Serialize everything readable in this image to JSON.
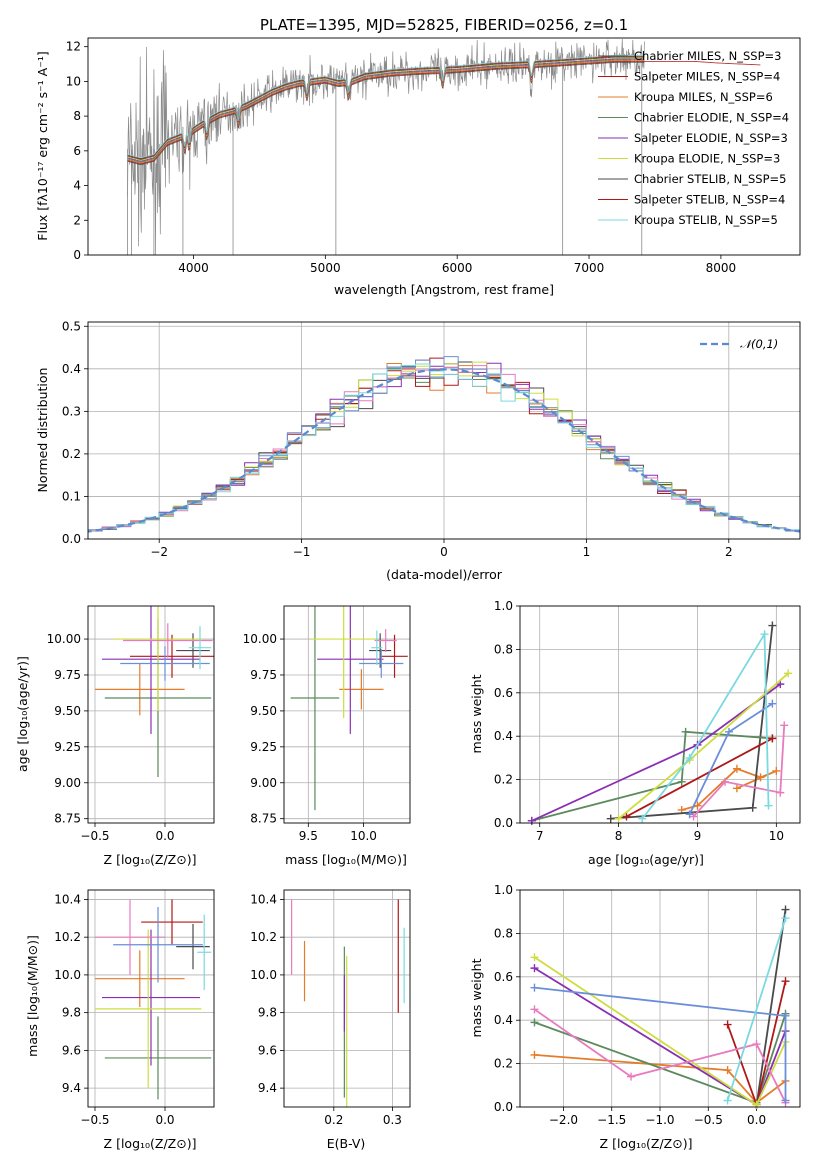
{
  "colors": [
    "#e57c2a",
    "#4a4a4a",
    "#5b8a5d",
    "#b01818",
    "#8a2fb3",
    "#cddd3f",
    "#e87bc0",
    "#6a8fd8",
    "#7ad9e0"
  ],
  "chart_data": [
    {
      "id": "spectrum",
      "type": "line",
      "title": "PLATE=1395, MJD=52825, FIBERID=0256, z=0.1",
      "xlabel": "wavelength [Angstrom, rest frame]",
      "ylabel": "Flux [fλ10⁻¹⁷ erg cm⁻² s⁻¹ A⁻¹]",
      "xlim": [
        3200,
        8600
      ],
      "ylim": [
        0,
        12.5
      ],
      "xticks": [
        4000,
        5000,
        6000,
        7000,
        8000
      ],
      "yticks": [
        0,
        2,
        4,
        6,
        8,
        10,
        12
      ],
      "legend_position": "right",
      "series": [
        {
          "name": "Chabrier MILES, N_SSP=3",
          "color": "#4a4a4a"
        },
        {
          "name": "Salpeter MILES, N_SSP=4",
          "color": "#b01818"
        },
        {
          "name": "Kroupa MILES, N_SSP=6",
          "color": "#e57c2a"
        },
        {
          "name": "Chabrier ELODIE, N_SSP=4",
          "color": "#5b8a5d"
        },
        {
          "name": "Salpeter ELODIE, N_SSP=3",
          "color": "#8a2fb3"
        },
        {
          "name": "Kroupa ELODIE, N_SSP=3",
          "color": "#cddd3f"
        },
        {
          "name": "Chabrier STELIB, N_SSP=5",
          "color": "#4a4a4a"
        },
        {
          "name": "Salpeter STELIB, N_SSP=4",
          "color": "#b01818"
        },
        {
          "name": "Kroupa STELIB, N_SSP=5",
          "color": "#7ad9e0"
        }
      ],
      "continuum": [
        [
          3500,
          5.6
        ],
        [
          3600,
          5.4
        ],
        [
          3700,
          5.6
        ],
        [
          3800,
          6.5
        ],
        [
          3900,
          6.8
        ],
        [
          4000,
          7.2
        ],
        [
          4100,
          7.7
        ],
        [
          4200,
          8.1
        ],
        [
          4300,
          8.3
        ],
        [
          4400,
          8.6
        ],
        [
          4500,
          9.0
        ],
        [
          4600,
          9.4
        ],
        [
          4700,
          9.7
        ],
        [
          4800,
          9.9
        ],
        [
          4900,
          10.0
        ],
        [
          5000,
          10.1
        ],
        [
          5100,
          9.9
        ],
        [
          5200,
          10.0
        ],
        [
          5300,
          10.3
        ],
        [
          5500,
          10.5
        ],
        [
          5700,
          10.6
        ],
        [
          6000,
          10.7
        ],
        [
          6300,
          10.9
        ],
        [
          6600,
          11.0
        ],
        [
          6800,
          11.1
        ],
        [
          7000,
          11.2
        ],
        [
          7200,
          11.3
        ],
        [
          7500,
          11.3
        ],
        [
          7800,
          11.3
        ],
        [
          8000,
          11.2
        ],
        [
          8300,
          11.1
        ]
      ]
    },
    {
      "id": "residuals",
      "type": "step",
      "xlabel": "(data-model)/error",
      "ylabel": "Normed distribution",
      "xlim": [
        -2.5,
        2.5
      ],
      "ylim": [
        0,
        0.51
      ],
      "xticks": [
        -2,
        -1,
        0,
        1,
        2
      ],
      "yticks": [
        0.0,
        0.1,
        0.2,
        0.3,
        0.4,
        0.5
      ],
      "legend": "𝒩(0,1)",
      "legend_position": "top-right"
    },
    {
      "id": "age-vs-z",
      "type": "errorbar",
      "xlabel": "Z [log₁₀(Z/Z⊙)]",
      "ylabel": "age  [log₁₀(age/yr)]",
      "xlim": [
        -0.55,
        0.35
      ],
      "ylim": [
        8.72,
        10.23
      ],
      "xticks": [
        -0.5,
        0.0
      ],
      "yticks": [
        8.75,
        9.0,
        9.25,
        9.5,
        9.75,
        10.0
      ],
      "points": [
        {
          "x": -0.18,
          "xerr": 0.32,
          "y": 9.65,
          "yerr": 0.18,
          "c": 0
        },
        {
          "x": 0.2,
          "xerr": 0.12,
          "y": 9.92,
          "yerr": 0.12,
          "c": 1
        },
        {
          "x": -0.05,
          "xerr": 0.38,
          "y": 9.59,
          "yerr": 0.55,
          "c": 2
        },
        {
          "x": 0.05,
          "xerr": 0.3,
          "y": 9.88,
          "yerr": 0.15,
          "c": 3
        },
        {
          "x": -0.1,
          "xerr": 0.35,
          "y": 9.86,
          "yerr": 0.52,
          "c": 4
        },
        {
          "x": -0.05,
          "xerr": 0.32,
          "y": 10.0,
          "yerr": 0.5,
          "c": 5
        },
        {
          "x": 0.02,
          "xerr": 0.32,
          "y": 9.99,
          "yerr": 0.12,
          "c": 6
        },
        {
          "x": 0.0,
          "xerr": 0.32,
          "y": 9.83,
          "yerr": 0.12,
          "c": 7
        },
        {
          "x": 0.25,
          "xerr": 0.08,
          "y": 9.94,
          "yerr": 0.15,
          "c": 8
        }
      ]
    },
    {
      "id": "age-vs-mass",
      "type": "errorbar",
      "xlabel": "mass [log₁₀(M/M⊙)]",
      "xlim": [
        9.28,
        10.42
      ],
      "ylim": [
        8.72,
        10.23
      ],
      "xticks": [
        9.5,
        10.0
      ],
      "yticks": [
        8.75,
        9.0,
        9.25,
        9.5,
        9.75,
        10.0
      ],
      "points": [
        {
          "x": 9.98,
          "xerr": 0.2,
          "y": 9.65,
          "yerr": 0.14,
          "c": 0
        },
        {
          "x": 10.15,
          "xerr": 0.1,
          "y": 9.92,
          "yerr": 0.12,
          "c": 1
        },
        {
          "x": 9.56,
          "xerr": 0.22,
          "y": 9.59,
          "yerr": 0.78,
          "c": 2
        },
        {
          "x": 10.28,
          "xerr": 0.12,
          "y": 9.88,
          "yerr": 0.15,
          "c": 3
        },
        {
          "x": 9.88,
          "xerr": 0.3,
          "y": 9.86,
          "yerr": 0.52,
          "c": 4
        },
        {
          "x": 9.82,
          "xerr": 0.3,
          "y": 10.0,
          "yerr": 0.55,
          "c": 5
        },
        {
          "x": 10.2,
          "xerr": 0.1,
          "y": 9.99,
          "yerr": 0.08,
          "c": 6
        },
        {
          "x": 10.16,
          "xerr": 0.2,
          "y": 9.83,
          "yerr": 0.1,
          "c": 7
        },
        {
          "x": 10.12,
          "xerr": 0.05,
          "y": 9.94,
          "yerr": 0.12,
          "c": 8
        }
      ]
    },
    {
      "id": "weight-vs-age",
      "type": "line",
      "xlabel": "age  [log₁₀(age/yr)]",
      "ylabel": "mass weight",
      "xlim": [
        6.75,
        10.3
      ],
      "ylim": [
        0,
        1
      ],
      "xticks": [
        7,
        8,
        9,
        10
      ],
      "yticks": [
        0.0,
        0.2,
        0.4,
        0.6,
        0.8,
        1.0
      ],
      "series": [
        {
          "c": 0,
          "x": [
            8.8,
            9.0,
            9.5,
            9.8,
            10.0,
            9.5
          ],
          "y": [
            0.06,
            0.08,
            0.25,
            0.21,
            0.24,
            0.16
          ]
        },
        {
          "c": 1,
          "x": [
            7.9,
            9.7,
            9.95
          ],
          "y": [
            0.02,
            0.07,
            0.91
          ]
        },
        {
          "c": 2,
          "x": [
            6.9,
            8.8,
            8.85,
            9.95
          ],
          "y": [
            0.01,
            0.19,
            0.42,
            0.39
          ]
        },
        {
          "c": 3,
          "x": [
            8.1,
            9.95
          ],
          "y": [
            0.03,
            0.39
          ]
        },
        {
          "c": 4,
          "x": [
            6.9,
            9.0,
            10.05
          ],
          "y": [
            0.01,
            0.36,
            0.64
          ]
        },
        {
          "c": 5,
          "x": [
            8.0,
            8.9,
            10.15
          ],
          "y": [
            0.02,
            0.29,
            0.69
          ]
        },
        {
          "c": 6,
          "x": [
            8.95,
            9.35,
            10.05,
            10.1
          ],
          "y": [
            0.03,
            0.19,
            0.14,
            0.45
          ]
        },
        {
          "c": 7,
          "x": [
            8.9,
            9.4,
            9.95
          ],
          "y": [
            0.04,
            0.42,
            0.55
          ]
        },
        {
          "c": 8,
          "x": [
            8.3,
            8.9,
            9.85,
            9.9
          ],
          "y": [
            0.02,
            0.3,
            0.87,
            0.08
          ]
        }
      ]
    },
    {
      "id": "mass-vs-z",
      "type": "errorbar",
      "xlabel": "Z [log₁₀(Z/Z⊙)]",
      "ylabel": "mass [log₁₀(M/M⊙)]",
      "xlim": [
        -0.55,
        0.35
      ],
      "ylim": [
        9.3,
        10.45
      ],
      "xticks": [
        -0.5,
        0.0
      ],
      "yticks": [
        9.4,
        9.6,
        9.8,
        10.0,
        10.2,
        10.4
      ],
      "points": [
        {
          "x": -0.18,
          "xerr": 0.32,
          "y": 9.98,
          "yerr": 0.15,
          "c": 0
        },
        {
          "x": 0.2,
          "xerr": 0.12,
          "y": 10.15,
          "yerr": 0.12,
          "c": 1
        },
        {
          "x": -0.05,
          "xerr": 0.38,
          "y": 9.56,
          "yerr": 0.22,
          "c": 2
        },
        {
          "x": 0.05,
          "xerr": 0.22,
          "y": 10.28,
          "yerr": 0.12,
          "c": 3
        },
        {
          "x": -0.1,
          "xerr": 0.35,
          "y": 9.88,
          "yerr": 0.36,
          "c": 4
        },
        {
          "x": -0.12,
          "xerr": 0.38,
          "y": 9.82,
          "yerr": 0.42,
          "c": 5
        },
        {
          "x": -0.25,
          "xerr": 0.25,
          "y": 10.2,
          "yerr": 0.2,
          "c": 6
        },
        {
          "x": -0.05,
          "xerr": 0.32,
          "y": 10.16,
          "yerr": 0.2,
          "c": 7
        },
        {
          "x": 0.28,
          "xerr": 0.05,
          "y": 10.12,
          "yerr": 0.2,
          "c": 8
        }
      ]
    },
    {
      "id": "mass-vs-ebv",
      "type": "errorbar",
      "xlabel": "E(B-V)",
      "xlim": [
        0.115,
        0.33
      ],
      "ylim": [
        9.3,
        10.45
      ],
      "xticks": [
        0.1,
        0.2,
        0.3
      ],
      "yticks": [
        9.4,
        9.6,
        9.8,
        10.0,
        10.2,
        10.4
      ],
      "points": [
        {
          "x": 0.15,
          "y": 10.02,
          "yerr": 0.16,
          "c": 0
        },
        {
          "x": 0.218,
          "y": 9.75,
          "yerr": 0.4,
          "c": 2
        },
        {
          "x": 0.31,
          "y": 10.1,
          "yerr": 0.3,
          "c": 3
        },
        {
          "x": 0.222,
          "y": 9.7,
          "yerr": 0.4,
          "c": 5
        },
        {
          "x": 0.128,
          "y": 10.2,
          "yerr": 0.2,
          "c": 6
        },
        {
          "x": 0.218,
          "y": 9.85,
          "yerr": 0.15,
          "c": 4
        },
        {
          "x": 0.32,
          "y": 10.05,
          "yerr": 0.2,
          "c": 8
        }
      ]
    },
    {
      "id": "weight-vs-z",
      "type": "line",
      "xlabel": "Z [log₁₀(Z/Z⊙)]",
      "ylabel": "mass weight",
      "xlim": [
        -2.45,
        0.45
      ],
      "ylim": [
        0,
        1
      ],
      "xticks": [
        -2.0,
        -1.5,
        -1.0,
        -0.5,
        0.0
      ],
      "yticks": [
        0.0,
        0.2,
        0.4,
        0.6,
        0.8,
        1.0
      ],
      "series": [
        {
          "c": 0,
          "x": [
            -2.3,
            -0.3,
            0.0,
            0.3
          ],
          "y": [
            0.24,
            0.17,
            0.02,
            0.12
          ]
        },
        {
          "c": 1,
          "x": [
            0.0,
            0.3
          ],
          "y": [
            0.01,
            0.91
          ]
        },
        {
          "c": 2,
          "x": [
            -2.3,
            0.0,
            0.3
          ],
          "y": [
            0.39,
            0.02,
            0.43
          ]
        },
        {
          "c": 3,
          "x": [
            -0.3,
            0.0,
            0.3
          ],
          "y": [
            0.38,
            0.01,
            0.58
          ]
        },
        {
          "c": 4,
          "x": [
            -2.3,
            0.0,
            0.3
          ],
          "y": [
            0.64,
            0.01,
            0.35
          ]
        },
        {
          "c": 5,
          "x": [
            -2.3,
            0.0,
            0.3
          ],
          "y": [
            0.69,
            0.01,
            0.3
          ]
        },
        {
          "c": 6,
          "x": [
            -2.3,
            -1.3,
            0.0,
            0.3
          ],
          "y": [
            0.45,
            0.14,
            0.29,
            0.02
          ]
        },
        {
          "c": 7,
          "x": [
            -2.3,
            0.3,
            0.3
          ],
          "y": [
            0.55,
            0.42,
            0.03
          ]
        },
        {
          "c": 8,
          "x": [
            -0.3,
            0.3
          ],
          "y": [
            0.03,
            0.87
          ]
        }
      ]
    }
  ]
}
